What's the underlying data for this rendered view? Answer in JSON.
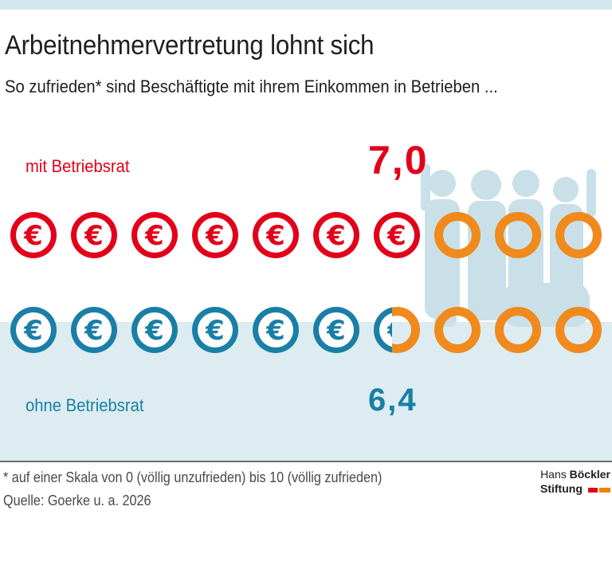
{
  "title": "Arbeitnehmervertretung lohnt sich",
  "subtitle": "So zufrieden* sind Beschäftigte mit ihrem Einkommen in Betrieben ...",
  "footnote": "* auf einer Skala von 0 (völlig unzufrieden) bis 10 (völlig zufrieden)",
  "source": "Quelle: Goerke u. a. 2026",
  "logo": {
    "line1_regular": "Hans",
    "line1_bold": "Böckler",
    "line2": "Stiftung"
  },
  "colors": {
    "red": "#e2001a",
    "blue": "#1a7fa6",
    "orange": "#f08a1c",
    "figure_silhouette": "#c9e0e8",
    "lower_band": "#dcecf1",
    "top_band": "#d2e6ee"
  },
  "icons": {
    "filled_unit": "euro-coin-icon",
    "empty_unit": "empty-ring-icon",
    "background": "people-cheering-silhouette"
  },
  "chart_data": {
    "type": "pictogram",
    "scale_max": 10,
    "unit_symbol": "€",
    "series": [
      {
        "name": "mit Betriebsrat",
        "value": 7.0,
        "value_label": "7,0",
        "color": "#e2001a"
      },
      {
        "name": "ohne Betriebsrat",
        "value": 6.4,
        "value_label": "6,4",
        "color": "#1a7fa6"
      }
    ]
  }
}
